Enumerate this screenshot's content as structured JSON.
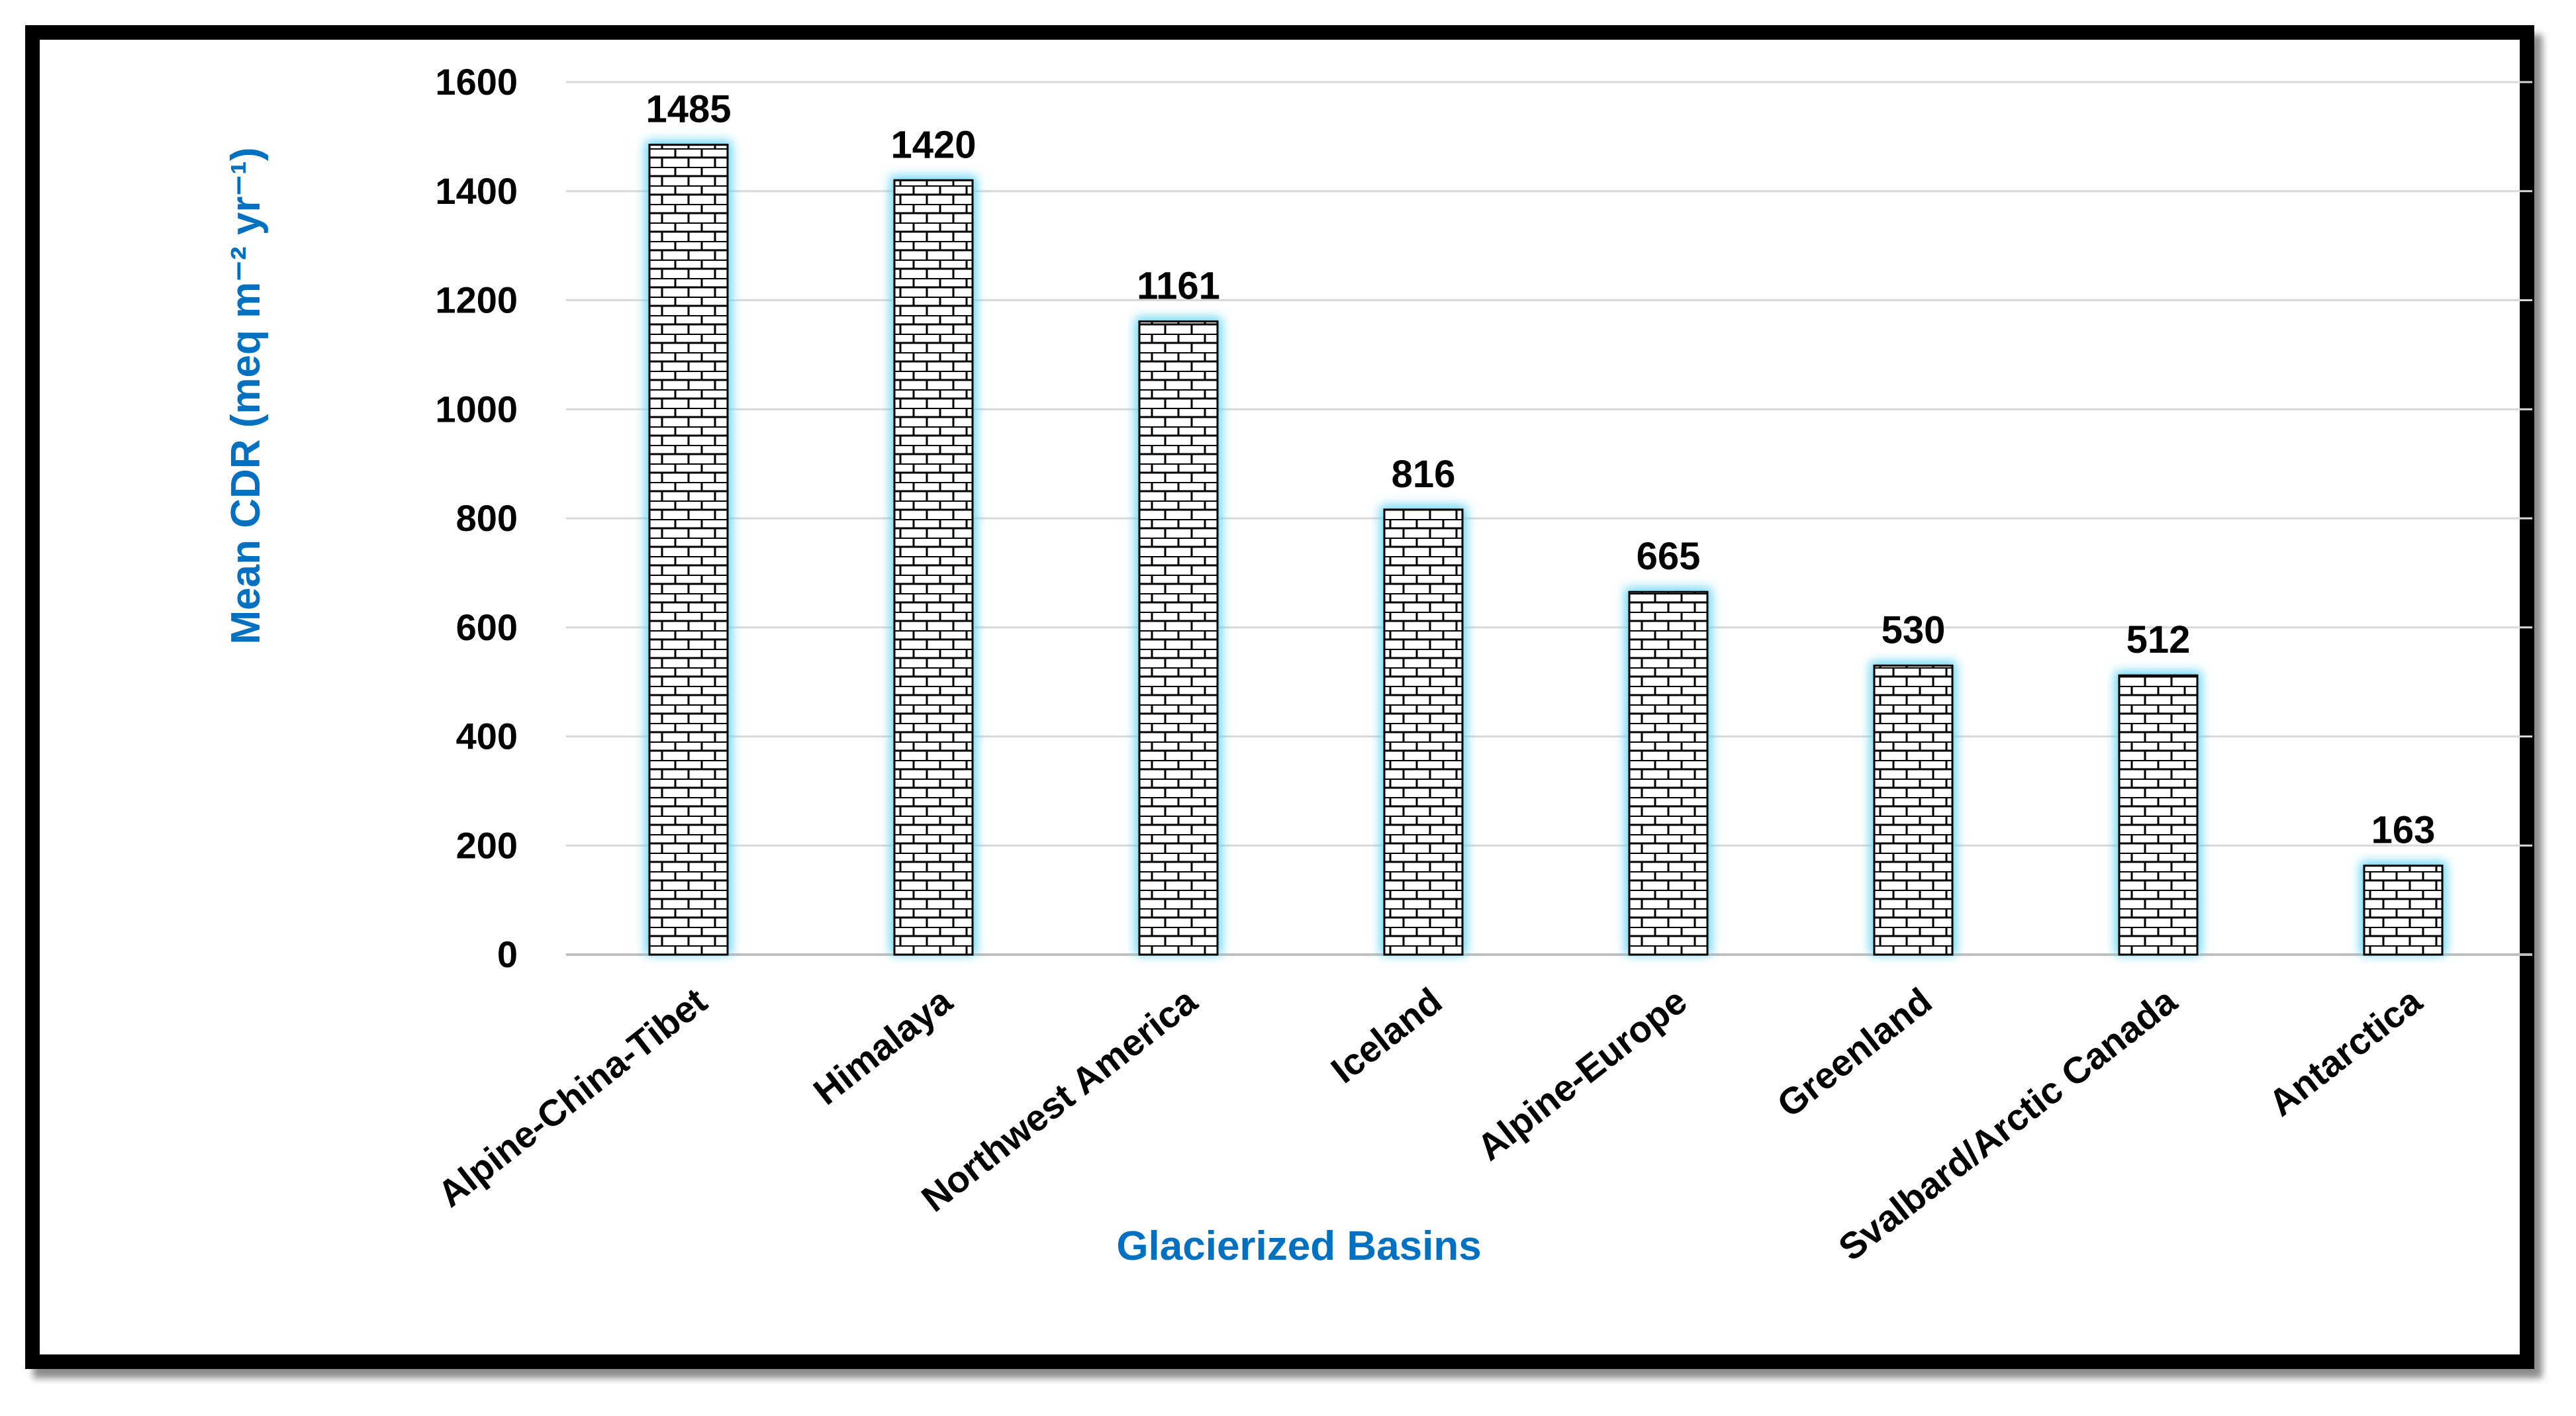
{
  "chart_data": {
    "type": "bar",
    "title": "",
    "xlabel": "Glacierized Basins",
    "ylabel": "Mean CDR (meq m⁻² yr⁻¹)",
    "categories": [
      "Alpine-China-Tibet",
      "Himalaya",
      "Northwest America",
      "Iceland",
      "Alpine-Europe",
      "Greenland",
      "Svalbard/Arctic Canada",
      "Antarctica"
    ],
    "values": [
      1485,
      1420,
      1161,
      816,
      665,
      530,
      512,
      163
    ],
    "data_labels": [
      "1485",
      "1420",
      "1161",
      "816",
      "665",
      "530",
      "512",
      "163"
    ],
    "ylim": [
      0,
      1600
    ],
    "yticks": [
      0,
      200,
      400,
      600,
      800,
      1000,
      1200,
      1400,
      1600
    ],
    "ytick_labels": [
      "0",
      "200",
      "400",
      "600",
      "800",
      "1000",
      "1200",
      "1400",
      "1600"
    ],
    "grid": true,
    "legend": "none",
    "colors": {
      "axis_title": "#0070c0",
      "bar_glow": "#5fd3f3",
      "grid": "#d9d9d9",
      "frame": "#000000"
    }
  }
}
